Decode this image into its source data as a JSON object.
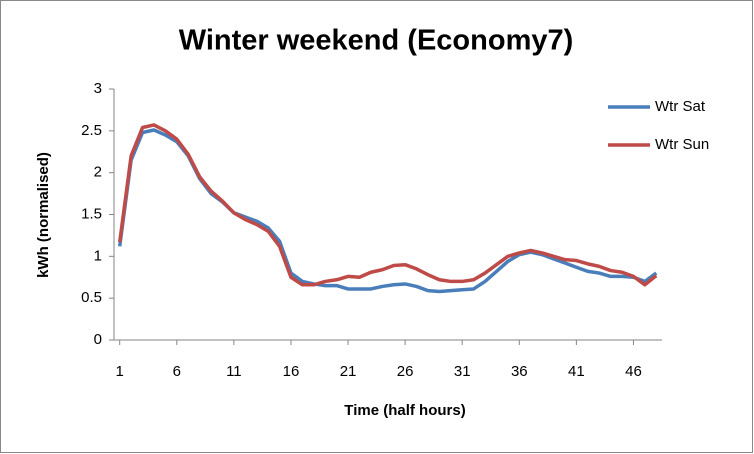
{
  "chart_data": {
    "type": "line",
    "title": "Winter weekend (Economy7)",
    "x_label": "Time (half hours)",
    "y_label": "kWh (normalised)",
    "x": [
      1,
      2,
      3,
      4,
      5,
      6,
      7,
      8,
      9,
      10,
      11,
      12,
      13,
      14,
      15,
      16,
      17,
      18,
      19,
      20,
      21,
      22,
      23,
      24,
      25,
      26,
      27,
      28,
      29,
      30,
      31,
      32,
      33,
      34,
      35,
      36,
      37,
      38,
      39,
      40,
      41,
      42,
      43,
      44,
      45,
      46,
      47,
      48
    ],
    "xlim": [
      0.5,
      48.5
    ],
    "xticks": [
      1,
      6,
      11,
      16,
      21,
      26,
      31,
      36,
      41,
      46
    ],
    "ylim": [
      0,
      3
    ],
    "yticks": [
      0,
      0.5,
      1,
      1.5,
      2,
      2.5,
      3
    ],
    "grid": false,
    "legend": "right",
    "series": [
      {
        "name": "Wtr Sat",
        "color": "#4a7ebb",
        "values": [
          1.12,
          2.15,
          2.48,
          2.51,
          2.45,
          2.37,
          2.2,
          1.93,
          1.75,
          1.65,
          1.52,
          1.47,
          1.42,
          1.34,
          1.18,
          0.8,
          0.7,
          0.67,
          0.65,
          0.65,
          0.61,
          0.61,
          0.61,
          0.64,
          0.66,
          0.67,
          0.64,
          0.59,
          0.58,
          0.59,
          0.6,
          0.61,
          0.7,
          0.82,
          0.94,
          1.02,
          1.05,
          1.02,
          0.97,
          0.92,
          0.87,
          0.82,
          0.8,
          0.76,
          0.76,
          0.75,
          0.7,
          0.8
        ]
      },
      {
        "name": "Wtr Sun",
        "color": "#be4b48",
        "values": [
          1.17,
          2.2,
          2.54,
          2.57,
          2.5,
          2.4,
          2.22,
          1.95,
          1.78,
          1.66,
          1.52,
          1.44,
          1.38,
          1.3,
          1.12,
          0.75,
          0.66,
          0.66,
          0.7,
          0.72,
          0.76,
          0.75,
          0.81,
          0.84,
          0.89,
          0.9,
          0.85,
          0.78,
          0.72,
          0.7,
          0.7,
          0.72,
          0.8,
          0.9,
          1.0,
          1.04,
          1.07,
          1.04,
          1.0,
          0.96,
          0.95,
          0.91,
          0.88,
          0.83,
          0.81,
          0.76,
          0.66,
          0.77
        ]
      }
    ]
  }
}
